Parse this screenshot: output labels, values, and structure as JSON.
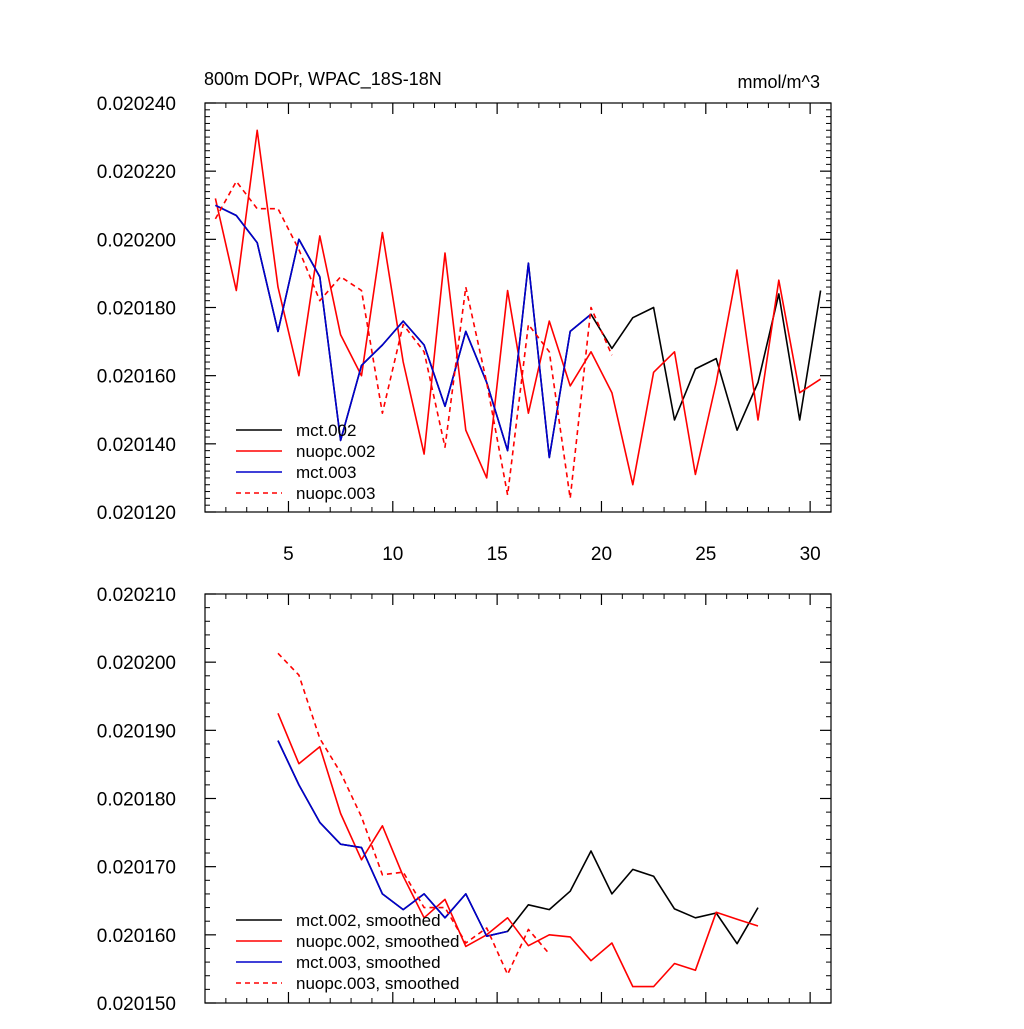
{
  "chart_data": [
    {
      "type": "line",
      "title": "800m DOPr, WPAC_18S-18N",
      "units": "mmol/m^3",
      "xlabel": "",
      "ylabel": "",
      "xlim": [
        1,
        31
      ],
      "ylim": [
        0.02012,
        0.02024
      ],
      "xticks": [
        5,
        10,
        15,
        20,
        25,
        30
      ],
      "xtick_labels": [
        "5",
        "10",
        "15",
        "20",
        "25",
        "30"
      ],
      "yticks": [
        0.02012,
        0.02014,
        0.02016,
        0.02018,
        0.0202,
        0.02022,
        0.02024
      ],
      "ytick_labels": [
        "0.020120",
        "0.020140",
        "0.020160",
        "0.020180",
        "0.020200",
        "0.020220",
        "0.020240"
      ],
      "grid": false,
      "legend_position": "bottom-left",
      "series": [
        {
          "name": "mct.002",
          "color": "#000000",
          "dash": "solid",
          "x": [
            1.5,
            2.5,
            3.5,
            4.5,
            5.5,
            6.5,
            7.5,
            8.5,
            9.5,
            10.5,
            11.5,
            12.5,
            13.5,
            14.5,
            15.5,
            16.5,
            17.5,
            18.5,
            19.5,
            20.5,
            21.5,
            22.5,
            23.5,
            24.5,
            25.5,
            26.5,
            27.5,
            28.5,
            29.5,
            30.5
          ],
          "values": [
            0.02021,
            0.020207,
            0.020199,
            0.020173,
            0.0202,
            0.020189,
            0.020141,
            0.020163,
            0.020169,
            0.020176,
            0.020169,
            0.020151,
            0.020173,
            0.020158,
            0.020138,
            0.020193,
            0.020136,
            0.020173,
            0.020178,
            0.020168,
            0.020177,
            0.02018,
            0.020147,
            0.020162,
            0.020165,
            0.020144,
            0.020158,
            0.020184,
            0.020147,
            0.020185
          ]
        },
        {
          "name": "nuopc.002",
          "color": "#ff0000",
          "dash": "solid",
          "x": [
            1.5,
            2.5,
            3.5,
            4.5,
            5.5,
            6.5,
            7.5,
            8.5,
            9.5,
            10.5,
            11.5,
            12.5,
            13.5,
            14.5,
            15.5,
            16.5,
            17.5,
            18.5,
            19.5,
            20.5,
            21.5,
            22.5,
            23.5,
            24.5,
            25.5,
            26.5,
            27.5,
            28.5,
            29.5,
            30.5
          ],
          "values": [
            0.020212,
            0.020185,
            0.020232,
            0.020186,
            0.02016,
            0.020201,
            0.020172,
            0.02016,
            0.020202,
            0.020164,
            0.020137,
            0.020196,
            0.020144,
            0.02013,
            0.020185,
            0.020149,
            0.020176,
            0.020157,
            0.020167,
            0.020155,
            0.020128,
            0.020161,
            0.020167,
            0.020131,
            0.020158,
            0.020191,
            0.020147,
            0.020188,
            0.020155,
            0.020159
          ]
        },
        {
          "name": "mct.003",
          "color": "#0000cc",
          "dash": "solid",
          "x": [
            1.5,
            2.5,
            3.5,
            4.5,
            5.5,
            6.5,
            7.5,
            8.5,
            9.5,
            10.5,
            11.5,
            12.5,
            13.5,
            14.5,
            15.5,
            16.5,
            17.5,
            18.5,
            19.5
          ],
          "values": [
            0.02021,
            0.020207,
            0.020199,
            0.020173,
            0.0202,
            0.020189,
            0.020141,
            0.020163,
            0.020169,
            0.020176,
            0.020169,
            0.020151,
            0.020173,
            0.020158,
            0.020138,
            0.020193,
            0.020136,
            0.020173,
            0.020178
          ]
        },
        {
          "name": "nuopc.003",
          "color": "#ff0000",
          "dash": "dashed",
          "x": [
            1.5,
            2.5,
            3.5,
            4.5,
            5.5,
            6.5,
            7.5,
            8.5,
            9.5,
            10.5,
            11.5,
            12.5,
            13.5,
            14.5,
            15.5,
            16.5,
            17.5,
            18.5,
            19.5,
            20.5
          ],
          "values": [
            0.020206,
            0.020217,
            0.020209,
            0.020209,
            0.020197,
            0.020182,
            0.020189,
            0.020185,
            0.020149,
            0.020175,
            0.020167,
            0.020139,
            0.020186,
            0.020158,
            0.020125,
            0.020175,
            0.020167,
            0.020124,
            0.02018,
            0.020166
          ]
        }
      ]
    },
    {
      "type": "line",
      "title": "",
      "xlabel": "",
      "ylabel": "",
      "xlim": [
        1,
        31
      ],
      "ylim": [
        0.02015,
        0.02021
      ],
      "xticks": [
        5,
        10,
        15,
        20,
        25,
        30
      ],
      "yticks": [
        0.02015,
        0.02016,
        0.02017,
        0.02018,
        0.02019,
        0.0202,
        0.02021
      ],
      "ytick_labels": [
        "0.020150",
        "0.020160",
        "0.020170",
        "0.020180",
        "0.020190",
        "0.020200",
        "0.020210"
      ],
      "grid": false,
      "legend_position": "bottom-left",
      "series": [
        {
          "name": "mct.002, smoothed",
          "color": "#000000",
          "dash": "solid",
          "x": [
            4.5,
            5.5,
            6.5,
            7.5,
            8.5,
            9.5,
            10.5,
            11.5,
            12.5,
            13.5,
            14.5,
            15.5,
            16.5,
            17.5,
            18.5,
            19.5,
            20.5,
            21.5,
            22.5,
            23.5,
            24.5,
            25.5,
            26.5,
            27.5
          ],
          "values": [
            0.0201885,
            0.020182,
            0.0201765,
            0.0201733,
            0.0201728,
            0.020166,
            0.0201637,
            0.020166,
            0.0201625,
            0.020166,
            0.0201598,
            0.0201605,
            0.0201644,
            0.0201637,
            0.0201664,
            0.0201723,
            0.020166,
            0.0201696,
            0.0201686,
            0.0201638,
            0.0201625,
            0.0201632,
            0.0201587,
            0.020164
          ]
        },
        {
          "name": "nuopc.002, smoothed",
          "color": "#ff0000",
          "dash": "solid",
          "x": [
            4.5,
            5.5,
            6.5,
            7.5,
            8.5,
            9.5,
            10.5,
            11.5,
            12.5,
            13.5,
            14.5,
            15.5,
            16.5,
            17.5,
            18.5,
            19.5,
            20.5,
            21.5,
            22.5,
            23.5,
            24.5,
            25.5,
            26.5,
            27.5
          ],
          "values": [
            0.0201925,
            0.0201851,
            0.0201876,
            0.0201778,
            0.020171,
            0.020176,
            0.0201686,
            0.0201625,
            0.0201652,
            0.0201583,
            0.02016,
            0.0201625,
            0.0201584,
            0.02016,
            0.0201597,
            0.0201562,
            0.0201588,
            0.0201524,
            0.0201524,
            0.0201558,
            0.0201548,
            0.0201633,
            0.0201623,
            0.0201613
          ]
        },
        {
          "name": "mct.003, smoothed",
          "color": "#0000cc",
          "dash": "solid",
          "x": [
            4.5,
            5.5,
            6.5,
            7.5,
            8.5,
            9.5,
            10.5,
            11.5,
            12.5,
            13.5,
            14.5,
            15.5
          ],
          "values": [
            0.0201885,
            0.020182,
            0.0201765,
            0.0201733,
            0.0201728,
            0.020166,
            0.0201637,
            0.020166,
            0.0201625,
            0.020166,
            0.0201598,
            0.0201605
          ]
        },
        {
          "name": "nuopc.003, smoothed",
          "color": "#ff0000",
          "dash": "dashed",
          "x": [
            4.5,
            5.5,
            6.5,
            7.5,
            8.5,
            9.5,
            10.5,
            11.5,
            12.5,
            13.5,
            14.5,
            15.5,
            16.5,
            17.5
          ],
          "values": [
            0.0202013,
            0.0201981,
            0.0201888,
            0.0201838,
            0.0201773,
            0.0201688,
            0.0201692,
            0.020164,
            0.020164,
            0.0201588,
            0.020161,
            0.0201542,
            0.0201608,
            0.0201572
          ]
        }
      ]
    }
  ]
}
